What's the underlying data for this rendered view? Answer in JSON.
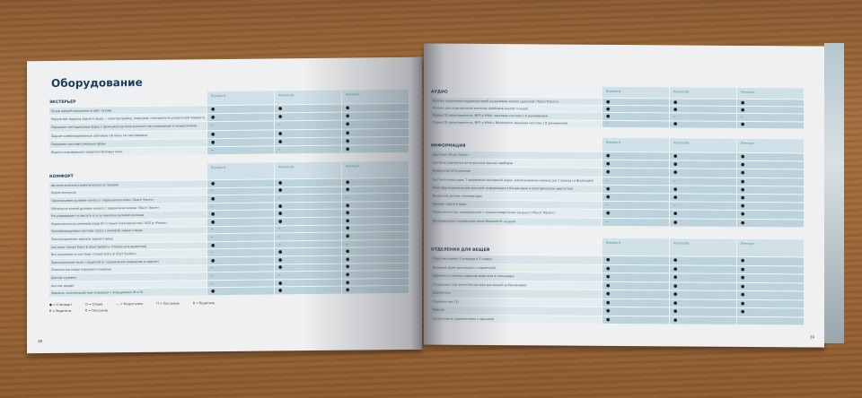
{
  "columns": [
    "Standard",
    "Advanced",
    "Premium"
  ],
  "left_page": {
    "title": "Оборудование",
    "page_number": "38",
    "tables": [
      {
        "section": "ЭКСТЕРЬЕР",
        "rows": [
          {
            "label": "Ручки дверей окрашены в цвет кузова",
            "values": [
              "●",
              "●",
              "●"
            ]
          },
          {
            "label": "Наружные зеркала заднего вида — электропривод, подогрев, повторители указателей поворота",
            "values": [
              "●",
              "●",
              "●"
            ]
          },
          {
            "label": "Передние светодиодные фары с функцией автоматического регулирования и омывателями",
            "values": [
              "–",
              "–",
              "●"
            ]
          },
          {
            "label": "Задние комбинированные световые сигналы на светодиодах",
            "values": [
              "●",
              "●",
              "●"
            ]
          },
          {
            "label": "Передние противотуманные фары",
            "values": [
              "●",
              "●",
              "●"
            ]
          },
          {
            "label": "Водоотталкивающее покрытие боковых окон",
            "values": [
              "–",
              "–",
              "●"
            ]
          }
        ]
      },
      {
        "section": "КОМФОРТ",
        "rows": [
          {
            "label": "Автоматическая климатическая установка",
            "values": [
              "●",
              "●",
              "●"
            ]
          },
          {
            "label": "Круиз-контроль",
            "values": [
              "–",
              "●",
              "●"
            ]
          },
          {
            "label": "Трехспицевое рулевое колесо с переключателями «Touch Tracer»",
            "values": [
              "●",
              "–",
              "–"
            ]
          },
          {
            "label": "Обтянутое кожей рулевое колесо с переключателями «Touch Tracer»",
            "values": [
              "–",
              "●",
              "●"
            ]
          },
          {
            "label": "Регулирование по высоте и углу наклона рулевой колонки",
            "values": [
              "●",
              "●",
              "●"
            ]
          },
          {
            "label": "Переключатели режимов езды EV (только электричество), ECO и «Power»",
            "values": [
              "●",
              "●",
              "●"
            ]
          },
          {
            "label": "Программируемая система пуска с камерой заднего вида",
            "values": [
              "–",
              "–",
              "●"
            ]
          },
          {
            "label": "Электрохромное зеркало заднего вида",
            "values": [
              "–",
              "–",
              "●"
            ]
          },
          {
            "label": "Система «Smart Entry & Start System» (только для водителя)",
            "values": [
              "●",
              "–",
              "–"
            ]
          },
          {
            "label": "Все компоненты системы «Smart Entry & Start System»",
            "values": [
              "–",
              "●",
              "●"
            ]
          },
          {
            "label": "Электрические окна с защитой от защемления (передние и задние)",
            "values": [
              "●",
              "●",
              "●"
            ]
          },
          {
            "label": "Поясничная опора переднего сиденья",
            "values": [
              "–",
              "●",
              "●"
            ]
          },
          {
            "label": "Датчик сумерек",
            "values": [
              "–",
              "–",
              "●"
            ]
          },
          {
            "label": "Датчик дождя",
            "values": [
              "–",
              "●",
              "●"
            ]
          },
          {
            "label": "Зеркала, солнцезащитные козырьки с освещением (В и П)",
            "values": [
              "●",
              "●",
              "●"
            ]
          }
        ]
      }
    ],
    "legend": [
      "● = Стандарт",
      "О = Опция",
      "— = Недоступно",
      "П = Пассажир",
      "В = Водитель"
    ],
    "legend_line2": [
      "В = Водитель",
      "П = Пассажир"
    ]
  },
  "right_page": {
    "page_number": "39",
    "tables": [
      {
        "section": "АУДИО",
        "rows": [
          {
            "label": "Кнопки управления аудиосистемой на рулевом колесе (дисплей «Touch Tracer»)",
            "values": [
              "●",
              "●",
              "●"
            ]
          },
          {
            "label": "Разъем для подключения внешних приборов (малое гнездо)",
            "values": [
              "●",
              "●",
              "●"
            ]
          },
          {
            "label": "Радио/CD-проигрыватель, MP3 и WMA, звуковая система с 6 динамиками",
            "values": [
              "●",
              "–",
              "–"
            ]
          },
          {
            "label": "Радио/CD-проигрыватель, MP3 и WMA с Bluetooth® звуковая система с 8 динамиками",
            "values": [
              "–",
              "●",
              "●"
            ]
          }
        ]
      },
      {
        "section": "ИНФОРМАЦИЯ",
        "rows": [
          {
            "label": "Дисплей «Touch Tracer»",
            "values": [
              "●",
              "●",
              "●"
            ]
          },
          {
            "label": "Система подсветки оптитронной панели приборов",
            "values": [
              "●",
              "●",
              "●"
            ]
          },
          {
            "label": "Индикатор ECO-режима",
            "values": [
              "●",
              "●",
              "●"
            ]
          },
          {
            "label": "Система навигации, 7-дюймовый сенсорный экран, распознавание команд (на 7 языках) и Bluetooth®",
            "values": [
              "–",
              "–",
              "●"
            ]
          },
          {
            "label": "Многофункциональный дисплей: информация о бензиновом и электрическом двигателе",
            "values": [
              "●",
              "●",
              "●"
            ]
          },
          {
            "label": "Выносной датчик температуры",
            "values": [
              "●",
              "●",
              "●"
            ]
          },
          {
            "label": "Камера заднего вида",
            "values": [
              "–",
              "–",
              "●"
            ]
          },
          {
            "label": "Переключатели, совмещенные с громкоговорителем на руле («Touch Tracer»)",
            "values": [
              "●",
              "●",
              "●"
            ]
          },
          {
            "label": "Беспроводная телефонная связь Bluetooth® на руле",
            "values": [
              "–",
              "●",
              "●"
            ]
          }
        ]
      },
      {
        "section": "ОТДЕЛЕНИЯ ДЛЯ ВЕЩЕЙ",
        "rows": [
          {
            "label": "Подстаканники (2 спереди и 2 сзади)",
            "values": [
              "●",
              "●",
              "●"
            ]
          },
          {
            "label": "Вещевой ящик для вещей с подсветкой",
            "values": [
              "●",
              "●",
              "●"
            ]
          },
          {
            "label": "Карманы в спинках сидений водителя и пассажира",
            "values": [
              "●",
              "●",
              "●"
            ]
          },
          {
            "label": "Отделение под полом багажника для вещей (в багажнике)",
            "values": [
              "●",
              "●",
              "●"
            ]
          },
          {
            "label": "Держатель",
            "values": [
              "●",
              "●",
              "●"
            ]
          },
          {
            "label": "Подлокотник (2)",
            "values": [
              "●",
              "●",
              "●"
            ]
          },
          {
            "label": "Крючки",
            "values": [
              "●",
              "●",
              "●"
            ]
          },
          {
            "label": "Отделение в подлокотнике с крышкой",
            "values": [
              "●",
              "●",
              ""
            ]
          }
        ]
      }
    ]
  }
}
